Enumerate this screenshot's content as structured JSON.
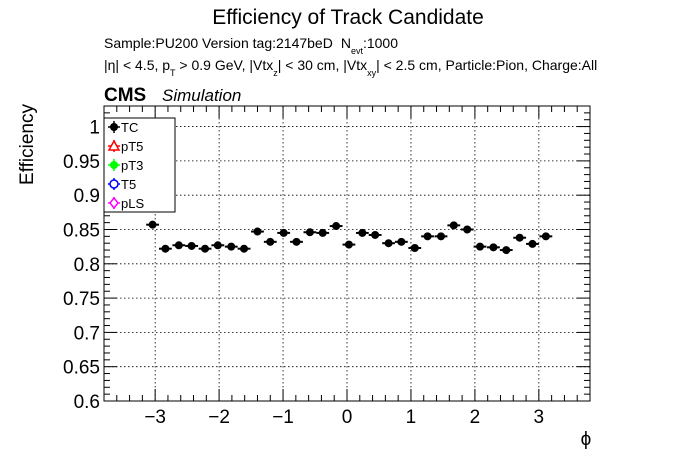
{
  "header": {
    "title": "Efficiency of Track Candidate",
    "sample_line": "Sample:PU200   Version tag:2147beD",
    "nevt_label": "N",
    "nevt_sub": "evt",
    "nevt_value": ":1000",
    "cuts": {
      "eta": "|η| < 4.5, p",
      "pt_sub": "T",
      "pt": " > 0.9 GeV, |Vtx",
      "vz_sub": "z",
      "vz": "| < 30 cm, |Vtx",
      "vxy_sub": "xy",
      "rest": "| < 2.5 cm, Particle:Pion, Charge:All"
    },
    "cms_label": "CMS",
    "simulation_label": "Simulation"
  },
  "chart_data": {
    "type": "scatter",
    "xlabel": "ϕ",
    "ylabel": "Efficiency",
    "xlim": [
      -3.8,
      3.8
    ],
    "ylim": [
      0.6,
      1.03
    ],
    "grid": true,
    "legend_position": "top-left",
    "x_ticks": [
      -3,
      -2,
      -1,
      0,
      1,
      2,
      3
    ],
    "x_tick_labels": [
      "−3",
      "−2",
      "−1",
      "0",
      "1",
      "2",
      "3"
    ],
    "y_ticks": [
      0.6,
      0.65,
      0.7,
      0.75,
      0.8,
      0.85,
      0.9,
      0.95,
      1
    ],
    "y_tick_labels": [
      "0.6",
      "0.65",
      "0.7",
      "0.75",
      "0.8",
      "0.85",
      "0.9",
      "0.95",
      "1"
    ],
    "legend": [
      {
        "name": "TC",
        "color": "#000000",
        "marker": "filled-circle"
      },
      {
        "name": "pT5",
        "color": "#ff0000",
        "marker": "open-triangle"
      },
      {
        "name": "pT3",
        "color": "#00ff00",
        "marker": "filled-circle"
      },
      {
        "name": "T5",
        "color": "#0000ff",
        "marker": "open-circle"
      },
      {
        "name": "pLS",
        "color": "#ff00ff",
        "marker": "open-diamond"
      }
    ],
    "x_bin_half_width": 0.1,
    "series": [
      {
        "name": "TC",
        "color": "#000000",
        "x": [
          -3.04,
          -2.84,
          -2.63,
          -2.43,
          -2.22,
          -2.02,
          -1.81,
          -1.61,
          -1.4,
          -1.2,
          -0.99,
          -0.79,
          -0.58,
          -0.38,
          -0.17,
          0.03,
          0.24,
          0.44,
          0.65,
          0.85,
          1.06,
          1.26,
          1.47,
          1.67,
          1.88,
          2.08,
          2.29,
          2.49,
          2.7,
          2.9,
          3.11
        ],
        "y": [
          0.857,
          0.822,
          0.827,
          0.826,
          0.822,
          0.827,
          0.825,
          0.822,
          0.847,
          0.832,
          0.845,
          0.832,
          0.846,
          0.845,
          0.855,
          0.828,
          0.845,
          0.842,
          0.83,
          0.832,
          0.823,
          0.84,
          0.84,
          0.856,
          0.85,
          0.825,
          0.824,
          0.82,
          0.838,
          0.829,
          0.84
        ],
        "yerr": 0.004
      }
    ]
  }
}
